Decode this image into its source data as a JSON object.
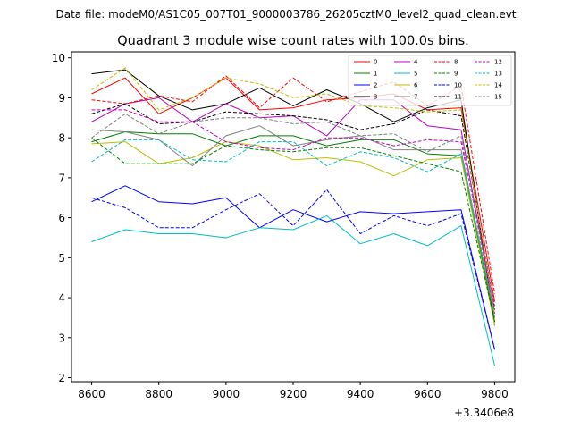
{
  "figure": {
    "suptitle": "Data file: modeM0/AS1C05_007T01_9000003786_26205cztM0_level2_quad_clean.evt"
  },
  "chart_data": {
    "type": "line",
    "title": "Quadrant 3 module wise count rates with 100.0s bins.",
    "xlabel": "",
    "ylabel": "",
    "x_offset_label": "+3.3406e8",
    "x": [
      8600,
      8700,
      8800,
      8900,
      9000,
      9100,
      9200,
      9300,
      9400,
      9500,
      9600,
      9700,
      9800
    ],
    "xlim": [
      8540,
      9860
    ],
    "ylim": [
      1.9,
      10.15
    ],
    "xticks": [
      8600,
      8800,
      9000,
      9200,
      9400,
      9600,
      9800
    ],
    "xtick_labels": [
      "8600",
      "8800",
      "9000",
      "9200",
      "9400",
      "9600",
      "9800"
    ],
    "yticks": [
      2,
      3,
      4,
      5,
      6,
      7,
      8,
      9,
      10
    ],
    "ytick_labels": [
      "2",
      "3",
      "4",
      "5",
      "6",
      "7",
      "8",
      "9",
      "10"
    ],
    "legend_position": "top-right",
    "series": [
      {
        "name": "0",
        "color": "#ff0000",
        "dash": false,
        "values": [
          9.1,
          9.5,
          8.6,
          9.0,
          9.5,
          8.7,
          8.75,
          8.95,
          9.0,
          9.1,
          8.7,
          8.75,
          3.9
        ]
      },
      {
        "name": "1",
        "color": "#008000",
        "dash": false,
        "values": [
          7.9,
          8.15,
          8.1,
          8.1,
          7.8,
          8.05,
          8.05,
          7.8,
          7.95,
          7.95,
          7.6,
          7.55,
          3.4
        ]
      },
      {
        "name": "2",
        "color": "#0000ff",
        "dash": false,
        "values": [
          6.4,
          6.8,
          6.4,
          6.35,
          6.5,
          5.75,
          6.2,
          5.9,
          6.15,
          6.1,
          6.15,
          6.2,
          2.7
        ]
      },
      {
        "name": "3",
        "color": "#000000",
        "dash": false,
        "values": [
          9.6,
          9.7,
          9.05,
          8.7,
          8.85,
          9.25,
          8.8,
          9.2,
          8.85,
          8.4,
          8.75,
          8.95,
          3.3
        ]
      },
      {
        "name": "4",
        "color": "#c000c0",
        "dash": false,
        "values": [
          8.4,
          8.85,
          9.0,
          8.4,
          8.85,
          8.5,
          8.55,
          8.05,
          8.95,
          8.95,
          8.3,
          8.2,
          3.6
        ]
      },
      {
        "name": "5",
        "color": "#00bfbf",
        "dash": false,
        "values": [
          5.4,
          5.7,
          5.6,
          5.6,
          5.5,
          5.75,
          5.7,
          6.05,
          5.35,
          5.6,
          5.3,
          5.8,
          2.3
        ]
      },
      {
        "name": "6",
        "color": "#bfbf00",
        "dash": false,
        "values": [
          7.85,
          7.9,
          7.35,
          7.5,
          7.9,
          7.8,
          7.45,
          7.5,
          7.4,
          7.05,
          7.45,
          7.5,
          3.3
        ]
      },
      {
        "name": "7",
        "color": "#808080",
        "dash": false,
        "values": [
          8.2,
          8.15,
          7.95,
          7.3,
          8.05,
          8.3,
          7.8,
          7.95,
          8.05,
          7.7,
          7.7,
          7.7,
          3.5
        ]
      },
      {
        "name": "8",
        "color": "#ff0000",
        "dash": true,
        "values": [
          8.95,
          8.85,
          9.05,
          8.9,
          9.55,
          8.75,
          9.5,
          8.9,
          9.15,
          9.4,
          8.8,
          9.3,
          4.1
        ]
      },
      {
        "name": "9",
        "color": "#008000",
        "dash": true,
        "values": [
          8.0,
          7.35,
          7.35,
          7.35,
          7.8,
          7.7,
          7.65,
          7.75,
          7.75,
          7.55,
          7.35,
          7.15,
          3.4
        ]
      },
      {
        "name": "10",
        "color": "#0000ff",
        "dash": true,
        "values": [
          6.5,
          6.25,
          5.75,
          5.75,
          6.2,
          6.6,
          5.8,
          6.7,
          5.6,
          6.05,
          5.8,
          6.1,
          2.7
        ]
      },
      {
        "name": "11",
        "color": "#000000",
        "dash": true,
        "values": [
          8.6,
          8.85,
          8.35,
          8.4,
          8.65,
          8.6,
          8.55,
          8.45,
          8.2,
          8.35,
          8.7,
          8.55,
          3.7
        ]
      },
      {
        "name": "12",
        "color": "#c000c0",
        "dash": true,
        "values": [
          8.7,
          8.7,
          8.4,
          8.4,
          7.9,
          7.75,
          7.7,
          8.0,
          8.0,
          7.8,
          7.95,
          7.9,
          3.8
        ]
      },
      {
        "name": "13",
        "color": "#00bfbf",
        "dash": true,
        "values": [
          7.4,
          7.95,
          7.95,
          7.45,
          7.4,
          7.9,
          7.9,
          7.3,
          7.65,
          7.5,
          7.15,
          7.6,
          3.5
        ]
      },
      {
        "name": "14",
        "color": "#bfbf00",
        "dash": true,
        "values": [
          9.2,
          9.75,
          8.7,
          9.0,
          9.5,
          9.35,
          9.0,
          9.1,
          8.8,
          8.75,
          8.65,
          8.7,
          3.6
        ]
      },
      {
        "name": "15",
        "color": "#808080",
        "dash": true,
        "values": [
          8.0,
          8.6,
          8.1,
          8.4,
          8.5,
          8.5,
          8.35,
          8.4,
          8.05,
          8.1,
          7.65,
          8.05,
          3.5
        ]
      }
    ]
  }
}
